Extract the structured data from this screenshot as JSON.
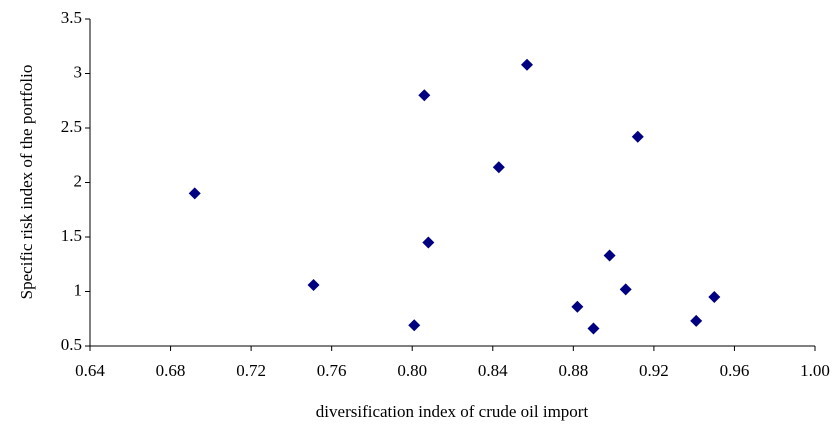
{
  "chart_data": {
    "type": "scatter",
    "x_label": "diversification index of crude oil import",
    "y_label": "Specific risk index of the portfolio",
    "color": "#000080",
    "x": [
      0.692,
      0.751,
      0.801,
      0.806,
      0.808,
      0.843,
      0.857,
      0.882,
      0.89,
      0.898,
      0.906,
      0.912,
      0.941,
      0.95
    ],
    "values": [
      1.9,
      1.06,
      0.69,
      2.8,
      1.45,
      2.14,
      3.08,
      0.86,
      0.66,
      1.33,
      1.02,
      2.42,
      0.73,
      0.95
    ],
    "xlim": [
      0.64,
      1.0
    ],
    "xticks": [
      0.64,
      0.68,
      0.72,
      0.76,
      {
        "value": 0.8,
        "label": "0.80"
      },
      0.84,
      0.88,
      0.92,
      0.96,
      {
        "value": 1.0,
        "label": "1.00"
      }
    ],
    "ylim": [
      0.5,
      3.5
    ],
    "yticks": [
      0.5,
      1,
      1.5,
      2,
      2.5,
      3,
      3.5
    ],
    "grid": false
  }
}
